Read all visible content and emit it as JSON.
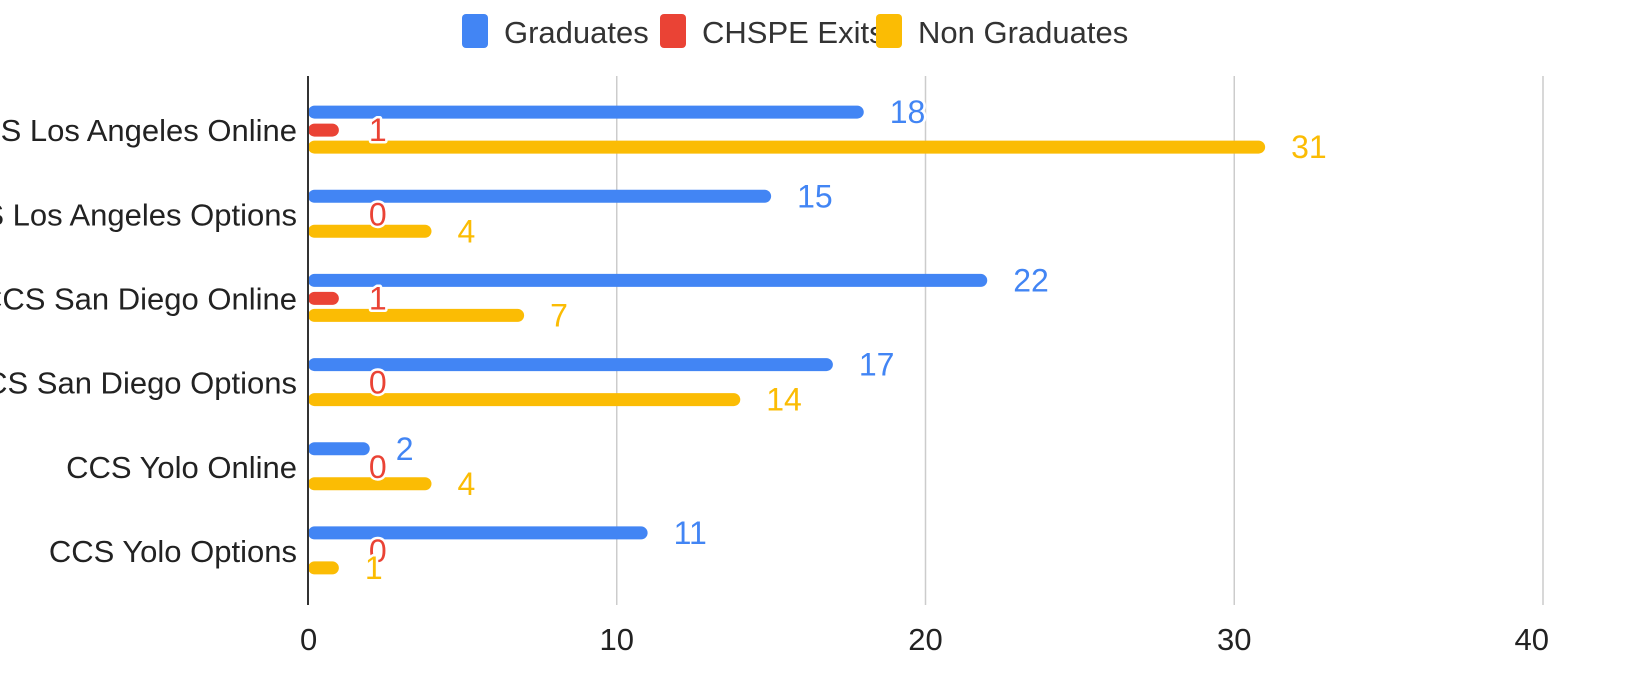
{
  "chart_data": {
    "type": "bar",
    "orientation": "horizontal",
    "title": "",
    "xlabel": "",
    "ylabel": "",
    "categories": [
      "CCS Los Angeles Online",
      "CCS Los Angeles Options",
      "CCS San Diego Online",
      "CCS San Diego Options",
      "CCS Yolo Online",
      "CCS Yolo Options"
    ],
    "series": [
      {
        "name": "Graduates",
        "color": "#4285f4",
        "values": [
          18,
          15,
          22,
          17,
          2,
          11
        ]
      },
      {
        "name": "CHSPE Exits",
        "color": "#ea4335",
        "values": [
          1,
          0,
          1,
          0,
          0,
          0
        ]
      },
      {
        "name": "Non Graduates",
        "color": "#fbbc04",
        "values": [
          31,
          4,
          7,
          14,
          4,
          1
        ]
      }
    ],
    "xlim": [
      0,
      40
    ],
    "xticks": [
      0,
      10,
      20,
      30,
      40
    ],
    "grid": true,
    "legend_position": "top-center",
    "data_labels": true
  }
}
